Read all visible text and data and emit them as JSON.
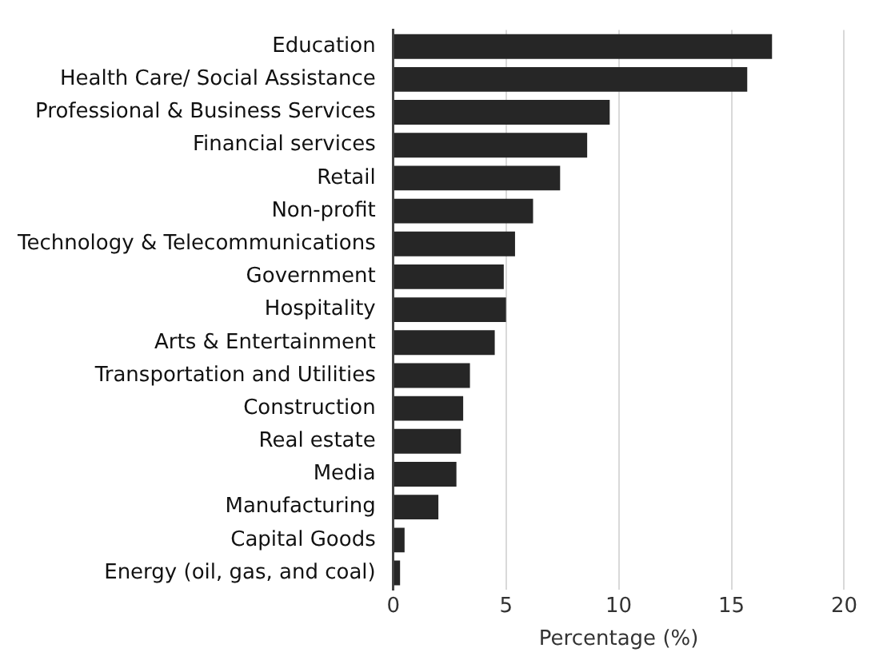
{
  "chart_data": {
    "type": "bar",
    "orientation": "horizontal",
    "xlabel": "Percentage (%)",
    "categories": [
      "Education",
      "Health Care/ Social Assistance",
      "Professional & Business Services",
      "Financial services",
      "Retail",
      "Non-profit",
      "Technology & Telecommunications",
      "Government",
      "Hospitality",
      "Arts & Entertainment",
      "Transportation and Utilities",
      "Construction",
      "Real estate",
      "Media",
      "Manufacturing",
      "Capital Goods",
      "Energy (oil, gas, and coal)"
    ],
    "values": [
      16.8,
      15.7,
      9.6,
      8.6,
      7.4,
      6.2,
      5.4,
      4.9,
      5.0,
      4.5,
      3.4,
      3.1,
      3.0,
      2.8,
      2.0,
      0.5,
      0.3
    ],
    "color": "#262626",
    "xlim": [
      0,
      20
    ],
    "xticks": [
      0,
      5,
      10,
      15,
      20
    ],
    "grid": "x",
    "legend": false
  }
}
